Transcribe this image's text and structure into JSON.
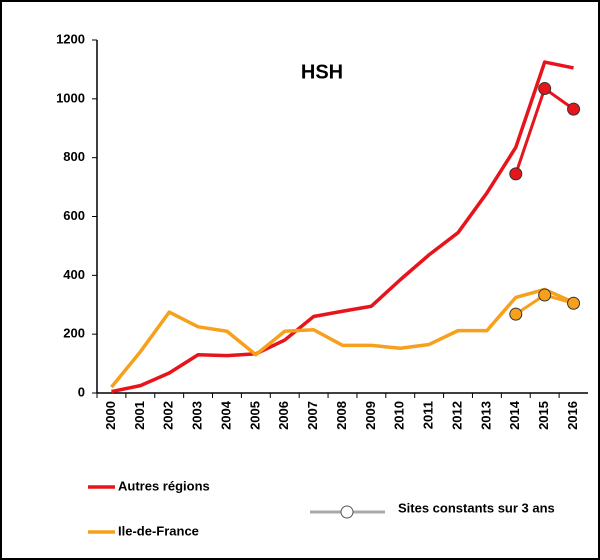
{
  "chart_data": {
    "type": "line",
    "title": "HSH",
    "categories": [
      "2000",
      "2001",
      "2002",
      "2003",
      "2004",
      "2005",
      "2006",
      "2007",
      "2008",
      "2009",
      "2010",
      "2011",
      "2012",
      "2013",
      "2014",
      "2015",
      "2016"
    ],
    "series": [
      {
        "name": "Autres régions",
        "color": "#e8141c",
        "values": [
          5,
          25,
          68,
          130,
          127,
          133,
          180,
          260,
          278,
          295,
          385,
          470,
          545,
          680,
          835,
          1125,
          1105
        ]
      },
      {
        "name": "Ile-de-France",
        "color": "#f7a01b",
        "values": [
          20,
          140,
          275,
          225,
          210,
          130,
          210,
          215,
          162,
          162,
          152,
          165,
          212,
          212,
          325,
          352,
          308
        ]
      }
    ],
    "constant_sites": {
      "label": "Sites constants sur 3 ans",
      "legend_color": "#aaaaaa",
      "series": [
        {
          "color": "#e8141c",
          "values": [
            null,
            null,
            null,
            null,
            null,
            null,
            null,
            null,
            null,
            null,
            null,
            null,
            null,
            null,
            745,
            1035,
            965
          ]
        },
        {
          "color": "#f7a01b",
          "values": [
            null,
            null,
            null,
            null,
            null,
            null,
            null,
            null,
            null,
            null,
            null,
            null,
            null,
            null,
            268,
            333,
            305
          ]
        }
      ]
    },
    "ylim": [
      0,
      1200
    ],
    "yticks": [
      0,
      200,
      400,
      600,
      800,
      1000,
      1200
    ],
    "grid": false
  }
}
